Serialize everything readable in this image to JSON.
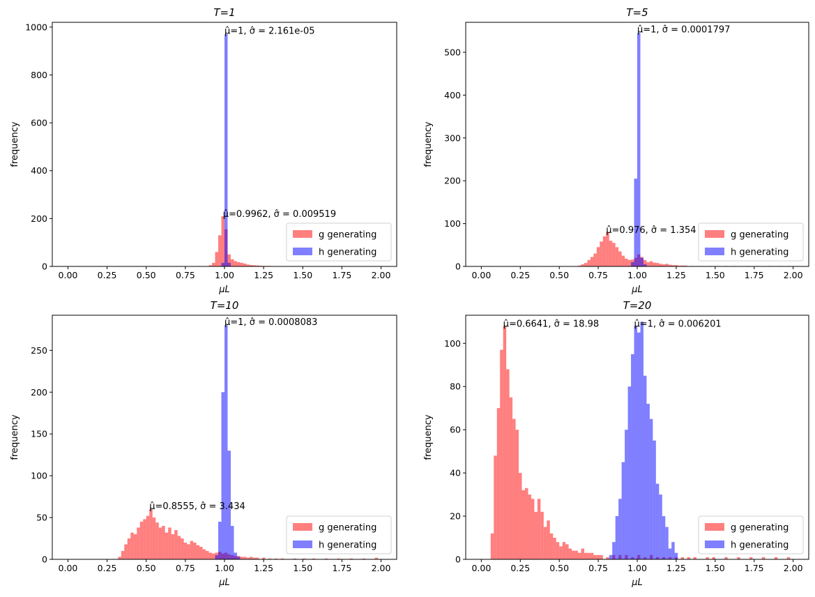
{
  "chart_data": [
    {
      "type": "bar",
      "title": "T=1",
      "xlabel": "μL",
      "ylabel": "frequency",
      "xlim": [
        -0.1,
        2.1
      ],
      "ylim": [
        0,
        1020
      ],
      "xticks": [
        "0.00",
        "0.25",
        "0.50",
        "0.75",
        "1.00",
        "1.25",
        "1.50",
        "1.75",
        "2.00"
      ],
      "yticks": [
        0,
        200,
        400,
        600,
        800,
        1000
      ],
      "legend": "lower-right",
      "series": [
        {
          "name": "g generating",
          "color": "#ff0000",
          "bin_width": 0.02,
          "bins": [
            [
              0.9,
              5
            ],
            [
              0.92,
              15
            ],
            [
              0.94,
              60
            ],
            [
              0.96,
              130
            ],
            [
              0.98,
              210
            ],
            [
              1.0,
              155
            ],
            [
              1.02,
              50
            ],
            [
              1.04,
              30
            ],
            [
              1.06,
              22
            ],
            [
              1.08,
              18
            ],
            [
              1.1,
              15
            ],
            [
              1.12,
              12
            ],
            [
              1.14,
              8
            ],
            [
              1.16,
              6
            ],
            [
              1.18,
              5
            ],
            [
              1.2,
              4
            ],
            [
              1.22,
              3
            ],
            [
              1.24,
              2
            ],
            [
              1.26,
              2
            ],
            [
              1.28,
              2
            ],
            [
              1.32,
              1
            ],
            [
              1.36,
              1
            ]
          ]
        },
        {
          "name": "h generating",
          "color": "#0000ff",
          "bin_width": 0.02,
          "bins": [
            [
              0.98,
              15
            ],
            [
              1.0,
              970
            ],
            [
              1.02,
              15
            ]
          ]
        }
      ],
      "annotations": [
        {
          "text": "μ̂=1, σ̂ = 2.161e-05",
          "x": 1.0,
          "y": 975
        },
        {
          "text": "μ̂=0.9962, σ̂ = 0.009519",
          "x": 0.99,
          "y": 210
        }
      ]
    },
    {
      "type": "bar",
      "title": "T=5",
      "xlabel": "μL",
      "ylabel": "frequency",
      "xlim": [
        -0.1,
        2.1
      ],
      "ylim": [
        0,
        570
      ],
      "xticks": [
        "0.00",
        "0.25",
        "0.50",
        "0.75",
        "1.00",
        "1.25",
        "1.50",
        "1.75",
        "2.00"
      ],
      "yticks": [
        0,
        100,
        200,
        300,
        400,
        500
      ],
      "legend": "lower-right",
      "series": [
        {
          "name": "g generating",
          "color": "#ff0000",
          "bin_width": 0.02,
          "bins": [
            [
              0.62,
              2
            ],
            [
              0.64,
              5
            ],
            [
              0.66,
              8
            ],
            [
              0.68,
              15
            ],
            [
              0.7,
              22
            ],
            [
              0.72,
              30
            ],
            [
              0.74,
              45
            ],
            [
              0.76,
              58
            ],
            [
              0.78,
              70
            ],
            [
              0.8,
              80
            ],
            [
              0.82,
              60
            ],
            [
              0.84,
              55
            ],
            [
              0.86,
              45
            ],
            [
              0.88,
              35
            ],
            [
              0.9,
              25
            ],
            [
              0.92,
              18
            ],
            [
              0.94,
              15
            ],
            [
              0.96,
              16
            ],
            [
              0.98,
              20
            ],
            [
              1.0,
              28
            ],
            [
              1.02,
              22
            ],
            [
              1.04,
              15
            ],
            [
              1.06,
              10
            ],
            [
              1.08,
              12
            ],
            [
              1.1,
              9
            ],
            [
              1.12,
              8
            ],
            [
              1.14,
              6
            ],
            [
              1.16,
              5
            ],
            [
              1.18,
              6
            ],
            [
              1.2,
              4
            ],
            [
              1.22,
              3
            ],
            [
              1.24,
              3
            ],
            [
              1.26,
              2
            ],
            [
              1.28,
              2
            ],
            [
              1.3,
              2
            ],
            [
              1.34,
              1
            ],
            [
              1.4,
              1
            ],
            [
              1.46,
              1
            ],
            [
              1.5,
              1
            ],
            [
              1.56,
              1
            ],
            [
              1.62,
              1
            ],
            [
              1.7,
              1
            ],
            [
              1.76,
              1
            ],
            [
              1.84,
              1
            ],
            [
              1.9,
              1
            ],
            [
              1.96,
              1
            ]
          ]
        },
        {
          "name": "h generating",
          "color": "#0000ff",
          "bin_width": 0.02,
          "bins": [
            [
              0.96,
              10
            ],
            [
              0.98,
              205
            ],
            [
              1.0,
              545
            ],
            [
              1.02,
              20
            ],
            [
              1.04,
              5
            ]
          ]
        }
      ],
      "annotations": [
        {
          "text": "μ̂=1, σ̂ = 0.0001797",
          "x": 1.0,
          "y": 548
        },
        {
          "text": "μ̂=0.976, σ̂ = 1.354",
          "x": 0.8,
          "y": 80
        }
      ]
    },
    {
      "type": "bar",
      "title": "T=10",
      "xlabel": "μL",
      "ylabel": "frequency",
      "xlim": [
        -0.1,
        2.1
      ],
      "ylim": [
        0,
        292
      ],
      "xticks": [
        "0.00",
        "0.25",
        "0.50",
        "0.75",
        "1.00",
        "1.25",
        "1.50",
        "1.75",
        "2.00"
      ],
      "yticks": [
        0,
        50,
        100,
        150,
        200,
        250
      ],
      "legend": "lower-right",
      "series": [
        {
          "name": "g generating",
          "color": "#ff0000",
          "bin_width": 0.02,
          "bins": [
            [
              0.32,
              3
            ],
            [
              0.34,
              10
            ],
            [
              0.36,
              18
            ],
            [
              0.38,
              25
            ],
            [
              0.4,
              32
            ],
            [
              0.42,
              30
            ],
            [
              0.44,
              38
            ],
            [
              0.46,
              45
            ],
            [
              0.48,
              48
            ],
            [
              0.5,
              52
            ],
            [
              0.52,
              60
            ],
            [
              0.54,
              50
            ],
            [
              0.56,
              44
            ],
            [
              0.58,
              38
            ],
            [
              0.6,
              40
            ],
            [
              0.62,
              32
            ],
            [
              0.64,
              38
            ],
            [
              0.66,
              30
            ],
            [
              0.68,
              35
            ],
            [
              0.7,
              28
            ],
            [
              0.72,
              25
            ],
            [
              0.74,
              20
            ],
            [
              0.76,
              18
            ],
            [
              0.78,
              22
            ],
            [
              0.8,
              20
            ],
            [
              0.82,
              17
            ],
            [
              0.84,
              15
            ],
            [
              0.86,
              12
            ],
            [
              0.88,
              10
            ],
            [
              0.9,
              8
            ],
            [
              0.92,
              7
            ],
            [
              0.94,
              8
            ],
            [
              0.96,
              9
            ],
            [
              0.98,
              7
            ],
            [
              1.0,
              8
            ],
            [
              1.02,
              6
            ],
            [
              1.04,
              5
            ],
            [
              1.06,
              4
            ],
            [
              1.08,
              4
            ],
            [
              1.1,
              3
            ],
            [
              1.12,
              3
            ],
            [
              1.14,
              2
            ],
            [
              1.16,
              3
            ],
            [
              1.18,
              2
            ],
            [
              1.2,
              2
            ],
            [
              1.24,
              2
            ],
            [
              1.28,
              1
            ],
            [
              1.32,
              1
            ],
            [
              1.36,
              1
            ],
            [
              1.44,
              1
            ],
            [
              1.5,
              1
            ],
            [
              1.56,
              1
            ],
            [
              1.64,
              1
            ],
            [
              1.72,
              1
            ],
            [
              1.8,
              1
            ],
            [
              1.88,
              1
            ],
            [
              1.96,
              2
            ]
          ]
        },
        {
          "name": "h generating",
          "color": "#0000ff",
          "bin_width": 0.02,
          "bins": [
            [
              0.94,
              5
            ],
            [
              0.96,
              45
            ],
            [
              0.98,
              200
            ],
            [
              1.0,
              280
            ],
            [
              1.02,
              130
            ],
            [
              1.04,
              40
            ],
            [
              1.06,
              8
            ],
            [
              1.08,
              3
            ]
          ]
        }
      ],
      "annotations": [
        {
          "text": "μ̂=1, σ̂ = 0.0008083",
          "x": 1.0,
          "y": 281
        },
        {
          "text": "μ̂=0.8555, σ̂ = 3.434",
          "x": 0.52,
          "y": 61
        }
      ]
    },
    {
      "type": "bar",
      "title": "T=20",
      "xlabel": "μL",
      "ylabel": "frequency",
      "xlim": [
        -0.1,
        2.1
      ],
      "ylim": [
        0,
        113
      ],
      "xticks": [
        "0.00",
        "0.25",
        "0.50",
        "0.75",
        "1.00",
        "1.25",
        "1.50",
        "1.75",
        "2.00"
      ],
      "yticks": [
        0,
        20,
        40,
        60,
        80,
        100
      ],
      "legend": "lower-right",
      "series": [
        {
          "name": "g generating",
          "color": "#ff0000",
          "bin_width": 0.02,
          "bins": [
            [
              0.06,
              12
            ],
            [
              0.08,
              48
            ],
            [
              0.1,
              70
            ],
            [
              0.12,
              97
            ],
            [
              0.14,
              108
            ],
            [
              0.16,
              88
            ],
            [
              0.18,
              75
            ],
            [
              0.2,
              65
            ],
            [
              0.22,
              60
            ],
            [
              0.24,
              40
            ],
            [
              0.26,
              32
            ],
            [
              0.28,
              33
            ],
            [
              0.3,
              30
            ],
            [
              0.32,
              28
            ],
            [
              0.34,
              22
            ],
            [
              0.36,
              28
            ],
            [
              0.38,
              22
            ],
            [
              0.4,
              15
            ],
            [
              0.42,
              18
            ],
            [
              0.44,
              12
            ],
            [
              0.46,
              10
            ],
            [
              0.48,
              8
            ],
            [
              0.5,
              6
            ],
            [
              0.52,
              8
            ],
            [
              0.54,
              7
            ],
            [
              0.56,
              5
            ],
            [
              0.58,
              4
            ],
            [
              0.6,
              4
            ],
            [
              0.62,
              3
            ],
            [
              0.64,
              5
            ],
            [
              0.66,
              3
            ],
            [
              0.68,
              3
            ],
            [
              0.7,
              3
            ],
            [
              0.72,
              2
            ],
            [
              0.74,
              2
            ],
            [
              0.76,
              2
            ],
            [
              0.8,
              1
            ],
            [
              0.84,
              2
            ],
            [
              0.88,
              2
            ],
            [
              0.92,
              2
            ],
            [
              0.96,
              1
            ],
            [
              1.0,
              2
            ],
            [
              1.04,
              1
            ],
            [
              1.08,
              2
            ],
            [
              1.12,
              1
            ],
            [
              1.16,
              1
            ],
            [
              1.2,
              1
            ],
            [
              1.24,
              1
            ],
            [
              1.28,
              1
            ],
            [
              1.32,
              1
            ],
            [
              1.36,
              1
            ],
            [
              1.44,
              1
            ],
            [
              1.48,
              1
            ],
            [
              1.56,
              1
            ],
            [
              1.64,
              1
            ],
            [
              1.72,
              1
            ],
            [
              1.8,
              1
            ],
            [
              1.88,
              1
            ],
            [
              1.96,
              1
            ]
          ]
        },
        {
          "name": "h generating",
          "color": "#0000ff",
          "bin_width": 0.02,
          "bins": [
            [
              0.82,
              2
            ],
            [
              0.84,
              8
            ],
            [
              0.86,
              20
            ],
            [
              0.88,
              28
            ],
            [
              0.9,
              45
            ],
            [
              0.92,
              60
            ],
            [
              0.94,
              80
            ],
            [
              0.96,
              95
            ],
            [
              0.98,
              108
            ],
            [
              1.0,
              105
            ],
            [
              1.02,
              110
            ],
            [
              1.04,
              85
            ],
            [
              1.06,
              72
            ],
            [
              1.08,
              65
            ],
            [
              1.1,
              55
            ],
            [
              1.12,
              35
            ],
            [
              1.14,
              30
            ],
            [
              1.16,
              20
            ],
            [
              1.18,
              15
            ],
            [
              1.2,
              5
            ],
            [
              1.22,
              8
            ],
            [
              1.24,
              3
            ]
          ]
        }
      ],
      "annotations": [
        {
          "text": "μ̂=0.6641, σ̂ = 18.98",
          "x": 0.14,
          "y": 108
        },
        {
          "text": "μ̂=1, σ̂ = 0.006201",
          "x": 0.98,
          "y": 108
        }
      ]
    }
  ]
}
